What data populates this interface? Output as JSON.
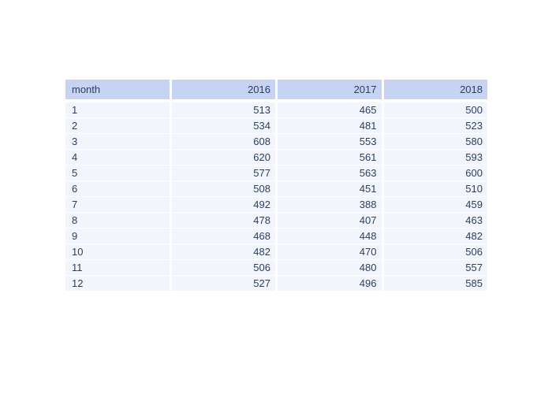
{
  "chart_data": {
    "type": "table",
    "title": "",
    "columns": [
      "month",
      "2016",
      "2017",
      "2018"
    ],
    "rows": [
      [
        1,
        513,
        465,
        500
      ],
      [
        2,
        534,
        481,
        523
      ],
      [
        3,
        608,
        553,
        580
      ],
      [
        4,
        620,
        561,
        593
      ],
      [
        5,
        577,
        563,
        600
      ],
      [
        6,
        508,
        451,
        510
      ],
      [
        7,
        492,
        388,
        459
      ],
      [
        8,
        478,
        407,
        463
      ],
      [
        9,
        468,
        448,
        482
      ],
      [
        10,
        482,
        470,
        506
      ],
      [
        11,
        506,
        480,
        557
      ],
      [
        12,
        527,
        496,
        585
      ]
    ],
    "layout_hints": {
      "header_fill": "#c7d3f3",
      "cell_fill": "#f2f5fc",
      "gridline_color": "#ffffff",
      "font_color": "#2a3f5f",
      "canvas_color": "#ffffff",
      "first_column_align": "left",
      "value_columns_align": "right"
    }
  }
}
